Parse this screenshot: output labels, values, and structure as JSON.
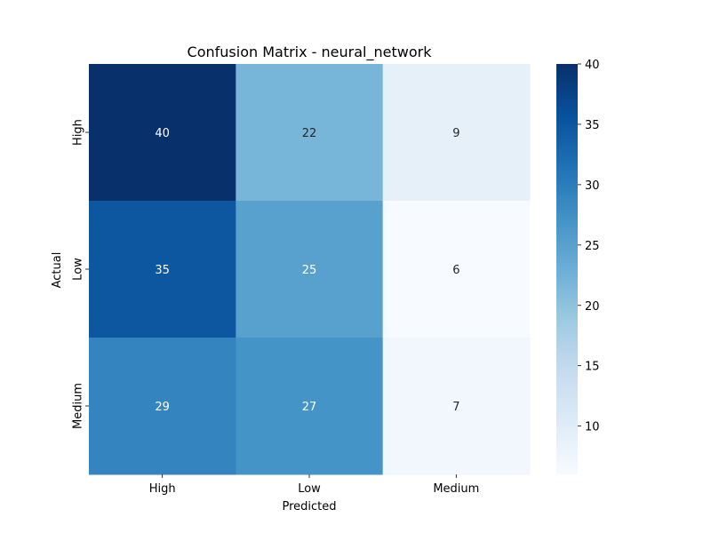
{
  "chart_data": {
    "type": "heatmap",
    "title": "Confusion Matrix - neural_network",
    "xlabel": "Predicted",
    "ylabel": "Actual",
    "x_categories": [
      "High",
      "Low",
      "Medium"
    ],
    "y_categories": [
      "High",
      "Low",
      "Medium"
    ],
    "values": [
      [
        40,
        22,
        9
      ],
      [
        35,
        25,
        6
      ],
      [
        29,
        27,
        7
      ]
    ],
    "colorbar": {
      "min": 6,
      "max": 40,
      "ticks": [
        10,
        15,
        20,
        25,
        30,
        35,
        40
      ]
    },
    "colormap": "Blues"
  }
}
